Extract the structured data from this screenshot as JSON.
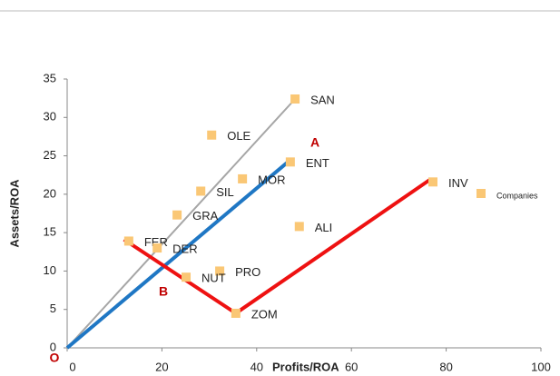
{
  "chart_data": {
    "type": "scatter",
    "xlabel": "Profits/ROA",
    "ylabel": "Assets/ROA",
    "xlim": [
      0,
      100
    ],
    "ylim": [
      0,
      35
    ],
    "xticks": [
      0,
      20,
      40,
      60,
      80,
      100
    ],
    "yticks": [
      0,
      5,
      10,
      15,
      20,
      25,
      30,
      35
    ],
    "grid": false,
    "legend": "right",
    "series": [
      {
        "name": "Companies",
        "color": "#fac775",
        "labels": [
          "SAN",
          "OLE",
          "ENT",
          "MOR",
          "INV",
          "SIL",
          "GRA",
          "ALI",
          "FER",
          "DER",
          "PRO",
          "NUT",
          "ZOM"
        ],
        "x": [
          48.1,
          30.5,
          47.1,
          37,
          77.2,
          28.2,
          23.2,
          49,
          13,
          19,
          32.2,
          25.1,
          35.6
        ],
        "y": [
          32.4,
          27.7,
          24.2,
          22,
          21.6,
          20.4,
          17.3,
          15.8,
          13.9,
          13,
          10,
          9.2,
          4.5
        ]
      }
    ],
    "lines": [
      {
        "color": "#a6a6a6",
        "x": [
          0,
          48.1
        ],
        "y": [
          0,
          32.4
        ]
      },
      {
        "color": "#1f77c4",
        "x": [
          0,
          46.4
        ],
        "y": [
          0,
          24.1
        ]
      },
      {
        "color": "#ee1111",
        "x": [
          12,
          35.6,
          76.6
        ],
        "y": [
          14.1,
          4.5,
          21.9
        ]
      }
    ],
    "annotations": [
      "A",
      "B",
      "O"
    ]
  }
}
